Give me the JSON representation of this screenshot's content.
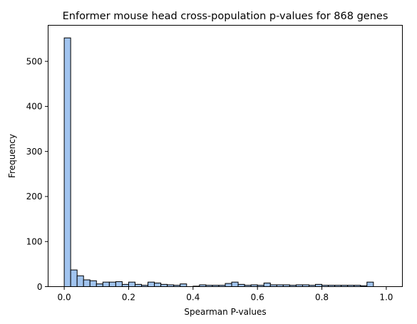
{
  "chart_data": {
    "type": "bar",
    "title": "Enformer mouse head cross-population p-values for 868 genes",
    "xlabel": "Spearman P-values",
    "ylabel": "Frequency",
    "xlim": [
      -0.05,
      1.05
    ],
    "ylim": [
      0,
      580
    ],
    "xticks": [
      0.0,
      0.2,
      0.4,
      0.6,
      0.8,
      1.0
    ],
    "xtick_labels": [
      "0.0",
      "0.2",
      "0.4",
      "0.6",
      "0.8",
      "1.0"
    ],
    "yticks": [
      0,
      100,
      200,
      300,
      400,
      500
    ],
    "ytick_labels": [
      "0",
      "100",
      "200",
      "300",
      "400",
      "500"
    ],
    "bin_start": 0.0,
    "bin_width": 0.02,
    "counts": [
      552,
      37,
      24,
      15,
      13,
      6,
      10,
      10,
      11,
      5,
      10,
      5,
      3,
      10,
      8,
      5,
      4,
      3,
      6,
      0,
      1,
      4,
      3,
      3,
      3,
      7,
      10,
      5,
      3,
      4,
      3,
      8,
      4,
      4,
      4,
      3,
      4,
      4,
      3,
      5,
      3,
      3,
      3,
      3,
      3,
      3,
      2,
      10
    ],
    "bar_color": "#a1c4ef",
    "edge_color": "#000000",
    "grid": false,
    "legend": "none"
  }
}
